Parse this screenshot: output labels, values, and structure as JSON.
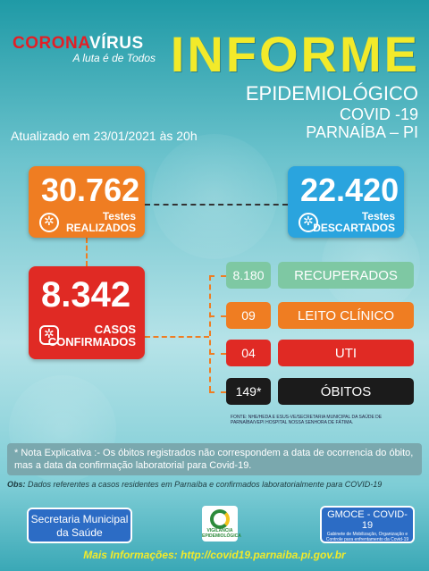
{
  "header": {
    "logo_corona": "CORONA",
    "logo_virus": "VÍRUS",
    "logo_subtitle": "A luta é de Todos",
    "title": "INFORME",
    "subtitle": "EPIDEMIOLÓGICO",
    "covid": "COVID -19",
    "city": "PARNAÍBA – PI",
    "updated": "Atualizado em 23/01/2021 às 20h"
  },
  "tests_done": {
    "value": "30.762",
    "label_line1": "Testes",
    "label_line2": "REALIZADOS"
  },
  "tests_discarded": {
    "value": "22.420",
    "label_line1": "Testes",
    "label_line2": "DESCARTADOS"
  },
  "confirmed": {
    "value": "8.342",
    "label_line1": "CASOS",
    "label_line2": "CONFIRMADOS"
  },
  "rows": [
    {
      "value": "8.180",
      "label": "RECUPERADOS"
    },
    {
      "value": "09",
      "label": "LEITO CLÍNICO"
    },
    {
      "value": "04",
      "label": "UTI"
    },
    {
      "value": "149*",
      "label": "ÓBITOS"
    }
  ],
  "source": "FONTE: NHE/HEDA E ESUS-VE/SECRETARIA MUNICIPAL DA SAÚDE DE PARNAÍBA/VEPI HOSPITAL NOSSA SENHORA DE FÁTIMA.",
  "note": "* Nota Explicativa :- Os óbitos registrados não correspondem a data de ocorrencia do óbito, mas a data da confirmação laboratorial para Covid-19.",
  "obs_label": "Obs:",
  "obs_text": " Dados referentes a casos residentes em Parnaíba e confirmados laboratorialmente para COVID-19",
  "footer": {
    "left_line1": "Secretaria Municipal",
    "left_line2": "da Saúde",
    "logo_text": "VIGILÂNCIA EPIDEMIOLÓGICA",
    "right_title": "GMOCE - COVID-19",
    "right_sub": "Gabinete de Mobilização, Organização e Controle para enfrentamento da Covid-19",
    "more_info": "Mais Informações: http://covid19.parnaiba.pi.gov.br"
  }
}
